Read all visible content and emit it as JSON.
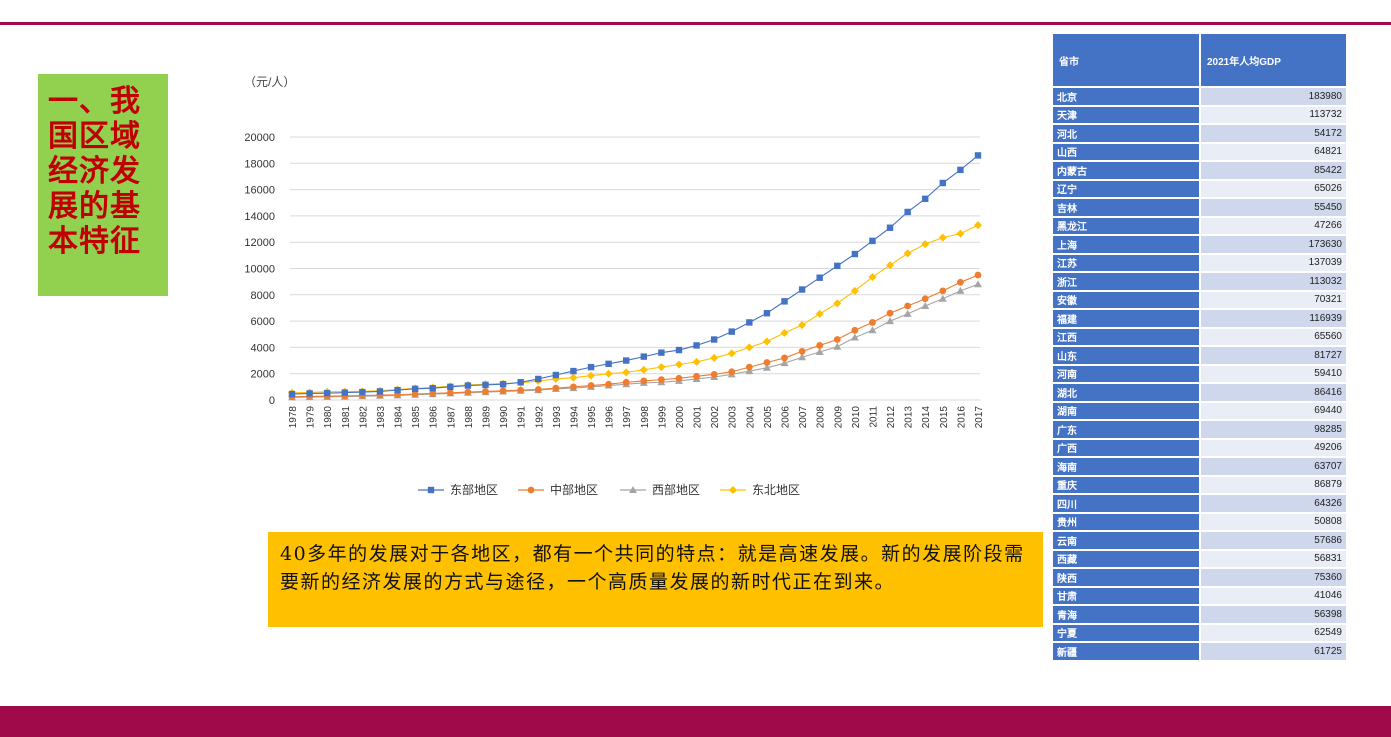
{
  "title": "一、我国区域经济发展的基本特征",
  "colors": {
    "accent": "#a0094a",
    "title_bg": "#92d050",
    "title_text": "#c00000",
    "note_bg": "#ffc000",
    "table_header": "#4472c4"
  },
  "chart_data": {
    "type": "line",
    "unit_label": "（元/人）",
    "x": [
      "1978",
      "1979",
      "1980",
      "1981",
      "1982",
      "1983",
      "1984",
      "1985",
      "1986",
      "1987",
      "1988",
      "1989",
      "1990",
      "1991",
      "1992",
      "1993",
      "1994",
      "1995",
      "1996",
      "1997",
      "1998",
      "1999",
      "2000",
      "2001",
      "2002",
      "2003",
      "2004",
      "2005",
      "2006",
      "2007",
      "2008",
      "2009",
      "2010",
      "2011",
      "2012",
      "2013",
      "2014",
      "2015",
      "2016",
      "2017"
    ],
    "yticks": [
      "0",
      "2000",
      "4000",
      "6000",
      "8000",
      "10000",
      "12000",
      "14000",
      "16000",
      "18000",
      "20000"
    ],
    "ylim": [
      0,
      20000
    ],
    "grid": true,
    "legend_position": "bottom",
    "series": [
      {
        "name": "东部地区",
        "color": "#4472c4",
        "marker": "square",
        "values": [
          450,
          500,
          520,
          560,
          600,
          650,
          750,
          850,
          900,
          1000,
          1100,
          1150,
          1200,
          1350,
          1600,
          1900,
          2200,
          2500,
          2750,
          3000,
          3300,
          3600,
          3800,
          4150,
          4600,
          5200,
          5900,
          6600,
          7500,
          8400,
          9300,
          10200,
          11100,
          12100,
          13100,
          14300,
          15300,
          16500,
          17500,
          18600
        ]
      },
      {
        "name": "中部地区",
        "color": "#ed7d31",
        "marker": "circle",
        "values": [
          250,
          270,
          290,
          310,
          340,
          370,
          400,
          450,
          500,
          550,
          600,
          650,
          700,
          750,
          800,
          900,
          1000,
          1100,
          1200,
          1350,
          1450,
          1550,
          1650,
          1800,
          1950,
          2150,
          2500,
          2850,
          3200,
          3700,
          4150,
          4600,
          5300,
          5900,
          6600,
          7150,
          7700,
          8300,
          8950,
          9500
        ]
      },
      {
        "name": "西部地区",
        "color": "#a5a5a5",
        "marker": "triangle",
        "values": [
          200,
          220,
          240,
          260,
          290,
          320,
          350,
          400,
          450,
          500,
          550,
          600,
          650,
          700,
          750,
          850,
          900,
          1000,
          1100,
          1200,
          1300,
          1350,
          1450,
          1600,
          1750,
          1950,
          2200,
          2450,
          2800,
          3250,
          3650,
          4050,
          4750,
          5300,
          6000,
          6550,
          7150,
          7700,
          8300,
          8800
        ]
      },
      {
        "name": "东北地区",
        "color": "#ffc000",
        "marker": "diamond",
        "values": [
          550,
          580,
          620,
          640,
          660,
          700,
          800,
          880,
          950,
          1050,
          1150,
          1200,
          1250,
          1300,
          1450,
          1600,
          1700,
          1850,
          2000,
          2100,
          2300,
          2500,
          2700,
          2900,
          3200,
          3550,
          4000,
          4450,
          5100,
          5700,
          6550,
          7350,
          8300,
          9350,
          10250,
          11150,
          11850,
          12350,
          12650,
          13300
        ]
      }
    ]
  },
  "note": "40多年的发展对于各地区，都有一个共同的特点：就是高速发展。新的发展阶段需要新的经济发展的方式与途径，一个高质量发展的新时代正在到来。",
  "table": {
    "headers": [
      "省市",
      "2021年人均GDP"
    ],
    "rows": [
      [
        "北京",
        "183980"
      ],
      [
        "天津",
        "113732"
      ],
      [
        "河北",
        "54172"
      ],
      [
        "山西",
        "64821"
      ],
      [
        "内蒙古",
        "85422"
      ],
      [
        "辽宁",
        "65026"
      ],
      [
        "吉林",
        "55450"
      ],
      [
        "黑龙江",
        "47266"
      ],
      [
        "上海",
        "173630"
      ],
      [
        "江苏",
        "137039"
      ],
      [
        "浙江",
        "113032"
      ],
      [
        "安徽",
        "70321"
      ],
      [
        "福建",
        "116939"
      ],
      [
        "江西",
        "65560"
      ],
      [
        "山东",
        "81727"
      ],
      [
        "河南",
        "59410"
      ],
      [
        "湖北",
        "86416"
      ],
      [
        "湖南",
        "69440"
      ],
      [
        "广东",
        "98285"
      ],
      [
        "广西",
        "49206"
      ],
      [
        "海南",
        "63707"
      ],
      [
        "重庆",
        "86879"
      ],
      [
        "四川",
        "64326"
      ],
      [
        "贵州",
        "50808"
      ],
      [
        "云南",
        "57686"
      ],
      [
        "西藏",
        "56831"
      ],
      [
        "陕西",
        "75360"
      ],
      [
        "甘肃",
        "41046"
      ],
      [
        "青海",
        "56398"
      ],
      [
        "宁夏",
        "62549"
      ],
      [
        "新疆",
        "61725"
      ]
    ]
  }
}
